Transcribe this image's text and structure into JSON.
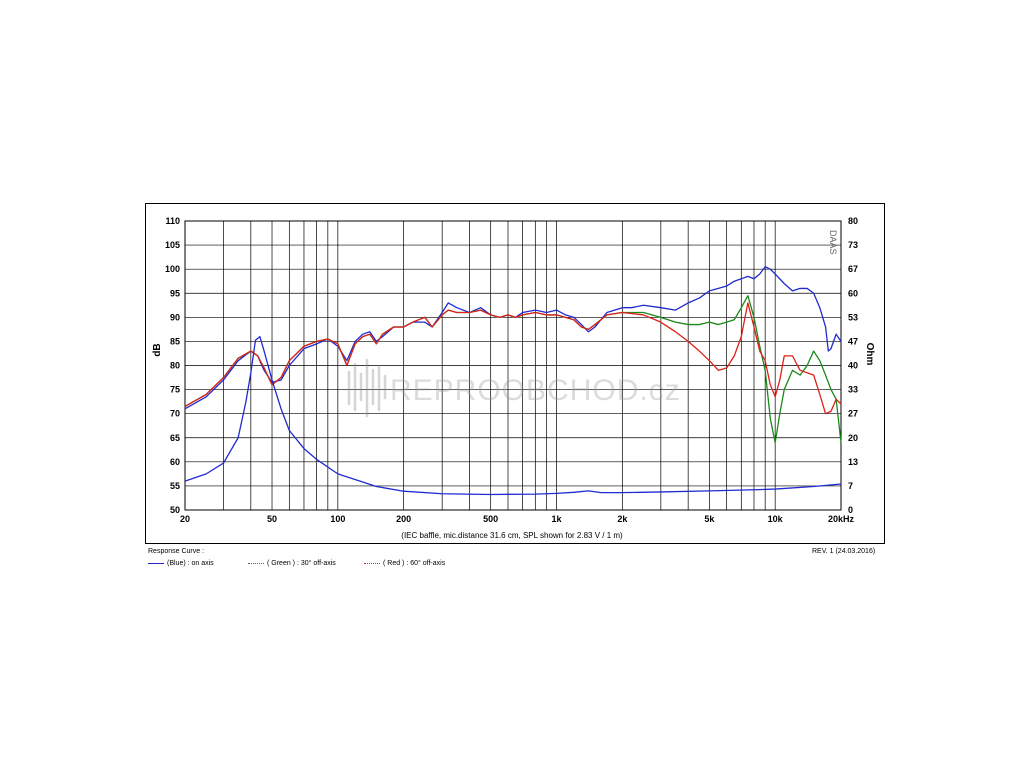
{
  "chart_data": {
    "type": "line",
    "x_scale": "log",
    "xlim": [
      20,
      20000
    ],
    "ylim_left": [
      50,
      110
    ],
    "ylim_right": [
      0,
      80
    ],
    "ylabel_left": "dB",
    "ylabel_right": "Ohm",
    "xlabel": "(IEC baffle, mic.distance 31.6 cm, SPL shown for 2.83 V / 1 m)",
    "grid": true,
    "x_grid_values": [
      20,
      30,
      40,
      50,
      60,
      70,
      80,
      90,
      100,
      200,
      300,
      400,
      500,
      600,
      700,
      800,
      900,
      1000,
      2000,
      3000,
      4000,
      5000,
      6000,
      7000,
      8000,
      9000,
      10000,
      20000
    ],
    "x_tick_labels": [
      {
        "value": 20,
        "label": "20"
      },
      {
        "value": 50,
        "label": "50"
      },
      {
        "value": 100,
        "label": "100"
      },
      {
        "value": 200,
        "label": "200"
      },
      {
        "value": 500,
        "label": "500"
      },
      {
        "value": 1000,
        "label": "1k"
      },
      {
        "value": 2000,
        "label": "2k"
      },
      {
        "value": 5000,
        "label": "5k"
      },
      {
        "value": 10000,
        "label": "10k"
      },
      {
        "value": 20000,
        "label": "20kHz"
      }
    ],
    "y_left_ticks": [
      110,
      105,
      100,
      95,
      90,
      85,
      80,
      75,
      70,
      65,
      60,
      55,
      50
    ],
    "y_right_ticks": [
      "80",
      "73",
      "67",
      "60",
      "53",
      "47",
      "40",
      "33",
      "27",
      "20",
      "13",
      "7",
      "0"
    ],
    "series": [
      {
        "name": "(Blue) : on axis",
        "color": "#1f2bd1",
        "axis": "left",
        "points": [
          [
            20,
            71
          ],
          [
            25,
            73.5
          ],
          [
            30,
            77
          ],
          [
            35,
            81
          ],
          [
            40,
            83
          ],
          [
            43,
            82
          ],
          [
            46,
            79
          ],
          [
            50,
            76.5
          ],
          [
            55,
            77
          ],
          [
            60,
            80
          ],
          [
            70,
            83.5
          ],
          [
            80,
            84.5
          ],
          [
            90,
            85.5
          ],
          [
            100,
            84
          ],
          [
            110,
            81
          ],
          [
            120,
            85
          ],
          [
            130,
            86.5
          ],
          [
            140,
            87
          ],
          [
            150,
            85
          ],
          [
            160,
            86
          ],
          [
            180,
            88
          ],
          [
            200,
            88
          ],
          [
            220,
            89
          ],
          [
            250,
            89
          ],
          [
            270,
            88
          ],
          [
            300,
            91
          ],
          [
            320,
            93
          ],
          [
            350,
            92
          ],
          [
            400,
            91
          ],
          [
            450,
            92
          ],
          [
            500,
            90.5
          ],
          [
            550,
            90
          ],
          [
            600,
            90.5
          ],
          [
            650,
            90
          ],
          [
            700,
            91
          ],
          [
            800,
            91.5
          ],
          [
            900,
            91
          ],
          [
            1000,
            91.5
          ],
          [
            1100,
            90.5
          ],
          [
            1200,
            90
          ],
          [
            1300,
            88.5
          ],
          [
            1400,
            87
          ],
          [
            1500,
            88
          ],
          [
            1700,
            91
          ],
          [
            2000,
            92
          ],
          [
            2200,
            92
          ],
          [
            2500,
            92.5
          ],
          [
            3000,
            92
          ],
          [
            3500,
            91.5
          ],
          [
            4000,
            93
          ],
          [
            4500,
            94
          ],
          [
            5000,
            95.5
          ],
          [
            5500,
            96
          ],
          [
            6000,
            96.5
          ],
          [
            6500,
            97.5
          ],
          [
            7000,
            98
          ],
          [
            7500,
            98.5
          ],
          [
            8000,
            98
          ],
          [
            8500,
            99
          ],
          [
            9000,
            100.5
          ],
          [
            9500,
            100
          ],
          [
            10000,
            99
          ],
          [
            11000,
            97
          ],
          [
            12000,
            95.5
          ],
          [
            13000,
            96
          ],
          [
            14000,
            96
          ],
          [
            15000,
            95
          ],
          [
            16000,
            92
          ],
          [
            17000,
            88
          ],
          [
            17500,
            83
          ],
          [
            18000,
            83.5
          ],
          [
            19000,
            86.5
          ],
          [
            20000,
            85
          ]
        ]
      },
      {
        "name": "( Green ) : 30° off-axis",
        "color": "#1a8a1a",
        "axis": "left",
        "points": [
          [
            20,
            71.5
          ],
          [
            25,
            74
          ],
          [
            30,
            77.5
          ],
          [
            35,
            81.5
          ],
          [
            40,
            83
          ],
          [
            43,
            82
          ],
          [
            46,
            79.5
          ],
          [
            50,
            76
          ],
          [
            55,
            77.5
          ],
          [
            60,
            81
          ],
          [
            70,
            84
          ],
          [
            80,
            85
          ],
          [
            90,
            85.5
          ],
          [
            100,
            84.5
          ],
          [
            110,
            80
          ],
          [
            120,
            84.5
          ],
          [
            130,
            86
          ],
          [
            140,
            86.5
          ],
          [
            150,
            84.5
          ],
          [
            160,
            86.5
          ],
          [
            180,
            88
          ],
          [
            200,
            88
          ],
          [
            220,
            89
          ],
          [
            250,
            90
          ],
          [
            270,
            88
          ],
          [
            300,
            90.5
          ],
          [
            320,
            91.5
          ],
          [
            350,
            91
          ],
          [
            400,
            91
          ],
          [
            450,
            91.5
          ],
          [
            500,
            90.5
          ],
          [
            550,
            90
          ],
          [
            600,
            90.5
          ],
          [
            650,
            90
          ],
          [
            700,
            90.5
          ],
          [
            800,
            91
          ],
          [
            900,
            90.5
          ],
          [
            1000,
            90.5
          ],
          [
            1100,
            90
          ],
          [
            1200,
            89.5
          ],
          [
            1300,
            88
          ],
          [
            1400,
            87.5
          ],
          [
            1500,
            88.5
          ],
          [
            1700,
            90.5
          ],
          [
            2000,
            91
          ],
          [
            2500,
            91
          ],
          [
            3000,
            90
          ],
          [
            3500,
            89
          ],
          [
            4000,
            88.5
          ],
          [
            4500,
            88.5
          ],
          [
            5000,
            89
          ],
          [
            5500,
            88.5
          ],
          [
            6000,
            89
          ],
          [
            6500,
            89.5
          ],
          [
            7000,
            92
          ],
          [
            7500,
            94.5
          ],
          [
            8000,
            90
          ],
          [
            8500,
            84
          ],
          [
            9000,
            79
          ],
          [
            9500,
            69
          ],
          [
            10000,
            64
          ],
          [
            10500,
            70
          ],
          [
            11000,
            75
          ],
          [
            12000,
            79
          ],
          [
            13000,
            78
          ],
          [
            14000,
            80
          ],
          [
            15000,
            83
          ],
          [
            16000,
            81
          ],
          [
            17000,
            78
          ],
          [
            18000,
            75
          ],
          [
            19000,
            73
          ],
          [
            20000,
            64
          ]
        ]
      },
      {
        "name": "( Red ) : 60° off-axis",
        "color": "#e0201a",
        "axis": "left",
        "points": [
          [
            20,
            71.5
          ],
          [
            25,
            74
          ],
          [
            30,
            77.5
          ],
          [
            35,
            81.5
          ],
          [
            40,
            83
          ],
          [
            43,
            82
          ],
          [
            46,
            79.5
          ],
          [
            50,
            76
          ],
          [
            55,
            77.5
          ],
          [
            60,
            81
          ],
          [
            70,
            84
          ],
          [
            80,
            85
          ],
          [
            90,
            85.5
          ],
          [
            100,
            84.5
          ],
          [
            110,
            80
          ],
          [
            120,
            84.5
          ],
          [
            130,
            86
          ],
          [
            140,
            86.5
          ],
          [
            150,
            84.5
          ],
          [
            160,
            86.5
          ],
          [
            180,
            88
          ],
          [
            200,
            88
          ],
          [
            220,
            89
          ],
          [
            250,
            90
          ],
          [
            270,
            88
          ],
          [
            300,
            90.5
          ],
          [
            320,
            91.5
          ],
          [
            350,
            91
          ],
          [
            400,
            91
          ],
          [
            450,
            91.5
          ],
          [
            500,
            90.5
          ],
          [
            550,
            90
          ],
          [
            600,
            90.5
          ],
          [
            650,
            90
          ],
          [
            700,
            90.5
          ],
          [
            800,
            91
          ],
          [
            900,
            90.5
          ],
          [
            1000,
            90.5
          ],
          [
            1100,
            90
          ],
          [
            1200,
            89.5
          ],
          [
            1300,
            88
          ],
          [
            1400,
            87.5
          ],
          [
            1500,
            88.5
          ],
          [
            1700,
            90.5
          ],
          [
            2000,
            91
          ],
          [
            2500,
            90.5
          ],
          [
            3000,
            89
          ],
          [
            3500,
            87
          ],
          [
            4000,
            85
          ],
          [
            4500,
            83
          ],
          [
            5000,
            81
          ],
          [
            5500,
            79
          ],
          [
            6000,
            79.5
          ],
          [
            6500,
            82
          ],
          [
            7000,
            86
          ],
          [
            7500,
            93
          ],
          [
            8000,
            88
          ],
          [
            8500,
            83
          ],
          [
            9000,
            81
          ],
          [
            9500,
            76
          ],
          [
            10000,
            73.5
          ],
          [
            10500,
            77
          ],
          [
            11000,
            82
          ],
          [
            12000,
            82
          ],
          [
            13000,
            79
          ],
          [
            14000,
            78.5
          ],
          [
            15000,
            78
          ],
          [
            16000,
            74
          ],
          [
            17000,
            70
          ],
          [
            18000,
            70.5
          ],
          [
            19000,
            73
          ],
          [
            20000,
            72
          ]
        ]
      },
      {
        "name": "Impedance",
        "color": "#1f2bd1",
        "axis": "right",
        "points": [
          [
            20,
            8
          ],
          [
            25,
            10
          ],
          [
            30,
            13
          ],
          [
            35,
            20
          ],
          [
            38,
            30
          ],
          [
            40,
            38
          ],
          [
            42,
            47
          ],
          [
            44,
            48
          ],
          [
            46,
            44
          ],
          [
            50,
            36
          ],
          [
            55,
            28
          ],
          [
            60,
            22
          ],
          [
            70,
            17
          ],
          [
            80,
            14
          ],
          [
            100,
            10
          ],
          [
            150,
            6.5
          ],
          [
            200,
            5.2
          ],
          [
            300,
            4.5
          ],
          [
            500,
            4.3
          ],
          [
            800,
            4.4
          ],
          [
            1000,
            4.6
          ],
          [
            1200,
            4.9
          ],
          [
            1400,
            5.3
          ],
          [
            1600,
            4.8
          ],
          [
            2000,
            4.8
          ],
          [
            3000,
            5
          ],
          [
            5000,
            5.3
          ],
          [
            8000,
            5.6
          ],
          [
            10000,
            5.8
          ],
          [
            15000,
            6.5
          ],
          [
            20000,
            7.2
          ]
        ]
      }
    ]
  },
  "header": {
    "brand_mark": "DAAS"
  },
  "watermark": {
    "text": "REPROOBCHOD.cz"
  },
  "legend": {
    "title": "Response Curve :",
    "revision": "REV. 1 (24.03.2016)",
    "items": [
      {
        "label": "(Blue)  : on axis",
        "color": "#1f2bd1",
        "style": "solid"
      },
      {
        "label": "( Green ) : 30° off-axis",
        "color": "#1a8a1a",
        "style": "dotted"
      },
      {
        "label": "( Red ) : 60° off-axis",
        "color": "#e0201a",
        "style": "dotted"
      }
    ]
  }
}
